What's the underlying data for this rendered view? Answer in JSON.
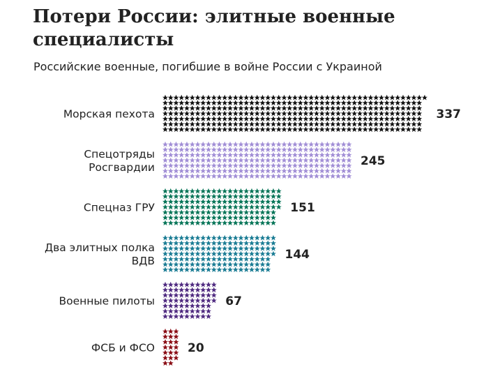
{
  "title": "Потери России: элитные военные специалисты",
  "subtitle": "Российские военные, погибшие в войне России с Украиной",
  "icon": "star-icon",
  "chart_data": {
    "type": "bar",
    "orientation": "horizontal",
    "unit_glyph": "star",
    "categories": [
      [
        "Морская пехота"
      ],
      [
        "Спецотряды",
        "Росгвардии"
      ],
      [
        "Спецназ ГРУ"
      ],
      [
        "Два элитных полка",
        "ВДВ"
      ],
      [
        "Военные пилоты"
      ],
      [
        "ФСБ и ФСО"
      ]
    ],
    "values": [
      337,
      245,
      151,
      144,
      67,
      20
    ],
    "colors": [
      "#111111",
      "#a18ed6",
      "#077558",
      "#1a7c94",
      "#4f2a80",
      "#8a0c14"
    ]
  }
}
